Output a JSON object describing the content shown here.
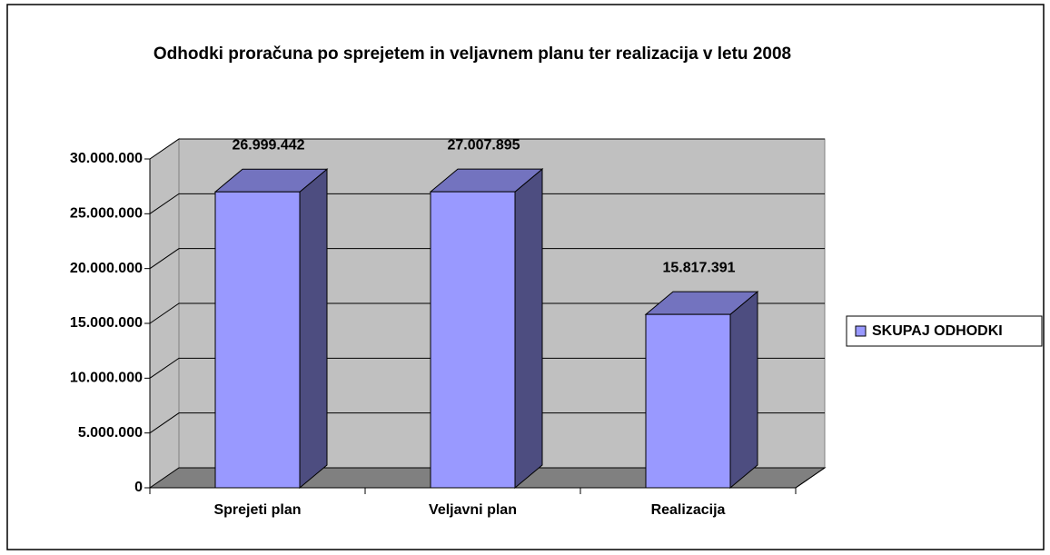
{
  "chart_data": {
    "type": "bar3d",
    "title": "Odhodki proračuna po sprejetem in veljavnem planu ter realizacija v letu 2008",
    "categories": [
      "Sprejeti plan",
      "Veljavni plan",
      "Realizacija"
    ],
    "series": [
      {
        "name": "SKUPAJ ODHODKI",
        "color": "#9999ff",
        "values": [
          26999442,
          27007895,
          15817391
        ],
        "value_labels": [
          "26.999.442",
          "27.007.895",
          "15.817.391"
        ]
      }
    ],
    "ylim": [
      0,
      30000000
    ],
    "yticks": [
      0,
      {
        "value": 5000000,
        "label": "5.000.000"
      },
      {
        "value": 10000000,
        "label": "10.000.000"
      },
      {
        "value": 15000000,
        "label": "15.000.000"
      },
      {
        "value": 20000000,
        "label": "20.000.000"
      },
      {
        "value": 25000000,
        "label": "25.000.000"
      },
      {
        "value": 30000000,
        "label": "30.000.000"
      }
    ],
    "grid": true,
    "legend": "right"
  }
}
